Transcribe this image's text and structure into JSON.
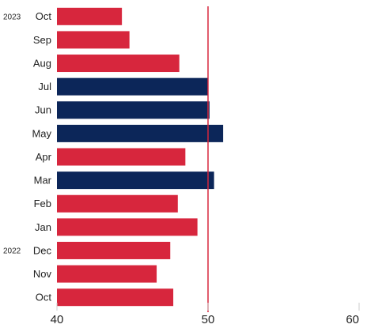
{
  "chart_data": {
    "type": "barh",
    "categories": [
      "Oct",
      "Sep",
      "Aug",
      "Jul",
      "Jun",
      "May",
      "Apr",
      "Mar",
      "Feb",
      "Jan",
      "Dec",
      "Nov",
      "Oct"
    ],
    "category_groups": [
      "2023",
      null,
      null,
      null,
      null,
      null,
      null,
      null,
      null,
      null,
      "2022",
      null,
      null
    ],
    "values": [
      44.3,
      44.8,
      48.1,
      50.0,
      50.1,
      51.0,
      48.5,
      50.4,
      48.0,
      49.3,
      47.5,
      46.6,
      47.7
    ],
    "colors": [
      "#d7263d",
      "#d7263d",
      "#d7263d",
      "#0c2659",
      "#0c2659",
      "#0c2659",
      "#d7263d",
      "#0c2659",
      "#d7263d",
      "#d7263d",
      "#d7263d",
      "#d7263d",
      "#d7263d"
    ],
    "xlim": [
      40,
      60
    ],
    "xticks": [
      40,
      50,
      60
    ],
    "reference_line": {
      "value": 50,
      "color": "#d7263d"
    }
  }
}
